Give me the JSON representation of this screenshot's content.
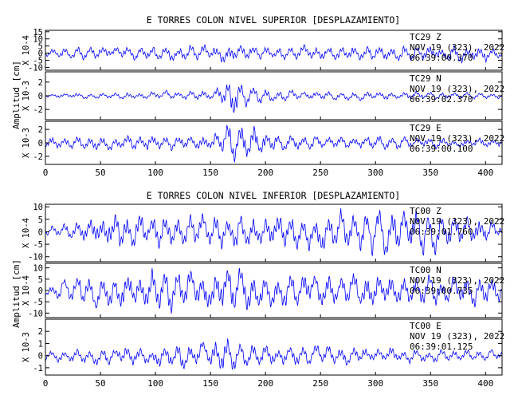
{
  "colors": {
    "trace": "#0000ff",
    "frame": "#000000",
    "background": "#ffffff"
  },
  "chart_data": [
    {
      "type": "line",
      "title": "E TORRES COLON NIVEL SUPERIOR [DESPLAZAMIENTO]",
      "ylabel": "Amplitud [cm]",
      "xlim": [
        0,
        415
      ],
      "xticks": [
        0,
        50,
        100,
        150,
        200,
        250,
        300,
        350,
        400
      ],
      "show_xtick_labels": true,
      "panels": [
        {
          "scale": "X 10-4",
          "station": "TC29",
          "component": "Z",
          "date": "NOV 19 (323), 2022",
          "time": "06:39:00.370",
          "ylim": [
            -12,
            16
          ],
          "yticks": [
            -10,
            -5,
            0,
            5,
            10,
            15
          ],
          "envelope": {
            "t": [
              0,
              30,
              60,
              90,
              120,
              150,
              165,
              180,
              200,
              250,
              300,
              350,
              380,
              400,
              415
            ],
            "a": [
              2.5,
              4,
              4.5,
              4.5,
              4.5,
              5,
              7,
              5,
              4.5,
              5,
              5,
              5,
              6,
              5,
              3
            ]
          }
        },
        {
          "scale": "X 10-3",
          "station": "TC29",
          "component": "N",
          "date": "NOV 19 (323), 2022",
          "time": "06:39:02.370",
          "ylim": [
            -3.5,
            3.5
          ],
          "yticks": [
            -2,
            0,
            2
          ],
          "envelope": {
            "t": [
              0,
              30,
              100,
              150,
              160,
              168,
              175,
              185,
              200,
              250,
              300,
              350,
              415
            ],
            "a": [
              0.25,
              0.4,
              0.5,
              0.7,
              1.5,
              3,
              2.4,
              1.4,
              0.8,
              0.55,
              0.6,
              0.5,
              0.4
            ]
          }
        },
        {
          "scale": "X 10-3",
          "station": "TC29",
          "component": "E",
          "date": "NOV 19 (323), 2022",
          "time": "06:39:00.100",
          "ylim": [
            -3.2,
            3.2
          ],
          "yticks": [
            -2,
            0,
            2
          ],
          "envelope": {
            "t": [
              0,
              50,
              100,
              150,
              160,
              168,
              175,
              190,
              205,
              250,
              300,
              350,
              415
            ],
            "a": [
              0.8,
              1,
              1,
              1.1,
              1.8,
              3,
              2.8,
              2.2,
              1.3,
              0.9,
              0.9,
              0.8,
              0.6
            ]
          }
        }
      ]
    },
    {
      "type": "line",
      "title": "E TORRES COLON NIVEL INFERIOR [DESPLAZAMIENTO]",
      "ylabel": "Amplitud [cm]",
      "xlim": [
        0,
        415
      ],
      "xticks": [
        0,
        50,
        100,
        150,
        200,
        250,
        300,
        350,
        400
      ],
      "show_xtick_labels": true,
      "panels": [
        {
          "scale": "X 10-4",
          "station": "TC00",
          "component": "Z",
          "date": "NOV 19 (323), 2022",
          "time": "06:39:01.760",
          "ylim": [
            -12,
            11
          ],
          "yticks": [
            -10,
            -5,
            0,
            5,
            10
          ],
          "envelope": {
            "t": [
              0,
              20,
              60,
              100,
              150,
              200,
              250,
              300,
              350,
              400,
              415
            ],
            "a": [
              1.5,
              3,
              7,
              6,
              6,
              6,
              7,
              8,
              8,
              5,
              3
            ]
          }
        },
        {
          "scale": "X 10-4",
          "station": "TC00",
          "component": "N",
          "date": "NOV 19 (323), 2022",
          "time": "06:39:00.735",
          "ylim": [
            -12,
            12
          ],
          "yticks": [
            -10,
            -5,
            0,
            5,
            10
          ],
          "envelope": {
            "t": [
              0,
              30,
              80,
              100,
              150,
              168,
              200,
              250,
              300,
              350,
              400,
              415
            ],
            "a": [
              2,
              6,
              8,
              9,
              7,
              10,
              7,
              7,
              7,
              6,
              7,
              5
            ]
          }
        },
        {
          "scale": "X 10-3",
          "station": "TC00",
          "component": "E",
          "date": "NOV 19 (323), 2022",
          "time": "06:39:01.125",
          "ylim": [
            -1.6,
            3
          ],
          "yticks": [
            -1,
            0,
            1,
            2
          ],
          "envelope": {
            "t": [
              0,
              50,
              100,
              150,
              165,
              175,
              200,
              250,
              300,
              350,
              415
            ],
            "a": [
              0.4,
              0.6,
              0.8,
              1,
              1.6,
              1,
              0.8,
              0.7,
              0.6,
              0.5,
              0.4
            ]
          }
        }
      ]
    }
  ]
}
